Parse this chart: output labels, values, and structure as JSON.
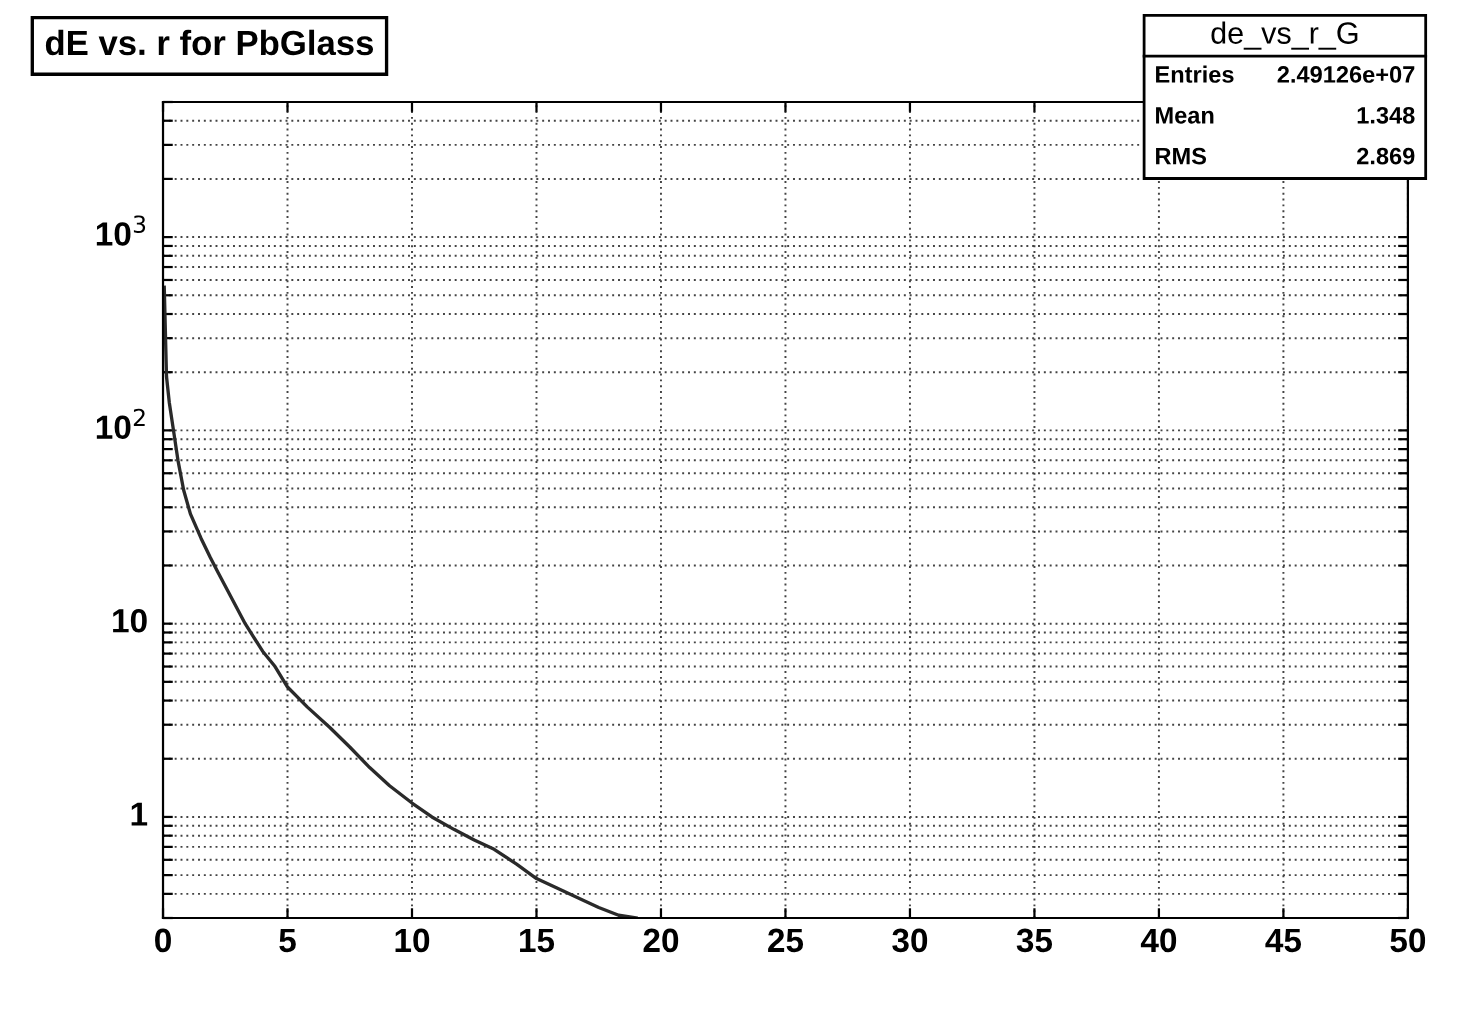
{
  "chart_data": {
    "type": "line",
    "title": "dE vs. r for PbGlass",
    "x": [
      0.05,
      0.14,
      0.25,
      0.42,
      0.6,
      0.83,
      1.1,
      1.53,
      1.9,
      2.2,
      2.7,
      3.3,
      4.0,
      4.5,
      5.0,
      5.8,
      6.7,
      7.5,
      8.3,
      9.1,
      10.0,
      10.8,
      11.7,
      12.5,
      13.3,
      14.2,
      15.0,
      15.8,
      16.7,
      17.5,
      18.3,
      19.0
    ],
    "series": [
      {
        "color": "#2a2a2a",
        "values": [
          550,
          190,
          140,
          100,
          70,
          49,
          37,
          27.6,
          22,
          18.5,
          14,
          10,
          7.2,
          6.0,
          4.7,
          3.7,
          2.9,
          2.3,
          1.8,
          1.45,
          1.18,
          1.0,
          0.86,
          0.76,
          0.68,
          0.57,
          0.48,
          0.43,
          0.38,
          0.34,
          0.31,
          0.3
        ]
      }
    ],
    "xlim": [
      0,
      50
    ],
    "xticks": [
      0,
      5,
      10,
      15,
      20,
      25,
      30,
      35,
      40,
      45,
      50
    ],
    "ylim": [
      0.3,
      5000
    ],
    "log": true,
    "yticks": [
      {
        "value": 0.3,
        "label": null
      },
      {
        "value": 0.4,
        "label": null
      },
      {
        "value": 0.5,
        "label": null
      },
      {
        "value": 0.6,
        "label": null
      },
      {
        "value": 0.7,
        "label": null
      },
      {
        "value": 0.8,
        "label": null
      },
      {
        "value": 0.9,
        "label": null
      },
      1,
      {
        "value": 2,
        "label": null
      },
      {
        "value": 3,
        "label": null
      },
      {
        "value": 4,
        "label": null
      },
      {
        "value": 5,
        "label": null
      },
      {
        "value": 6,
        "label": null
      },
      {
        "value": 7,
        "label": null
      },
      {
        "value": 8,
        "label": null
      },
      {
        "value": 9,
        "label": null
      },
      10,
      {
        "value": 20,
        "label": null
      },
      {
        "value": 30,
        "label": null
      },
      {
        "value": 40,
        "label": null
      },
      {
        "value": 50,
        "label": null
      },
      {
        "value": 60,
        "label": null
      },
      {
        "value": 70,
        "label": null
      },
      {
        "value": 80,
        "label": null
      },
      {
        "value": 90,
        "label": null
      },
      {
        "value": 100,
        "label": "10$^{2}$"
      },
      {
        "value": 200,
        "label": null
      },
      {
        "value": 300,
        "label": null
      },
      {
        "value": 400,
        "label": null
      },
      {
        "value": 500,
        "label": null
      },
      {
        "value": 600,
        "label": null
      },
      {
        "value": 700,
        "label": null
      },
      {
        "value": 800,
        "label": null
      },
      {
        "value": 900,
        "label": null
      },
      {
        "value": 1000,
        "label": "10$^{3}$"
      },
      {
        "value": 2000,
        "label": null
      },
      {
        "value": 3000,
        "label": null
      },
      {
        "value": 4000,
        "label": null
      },
      {
        "value": 5000,
        "label": null
      }
    ],
    "grid": true,
    "annotations": [
      "de_vs_r_G",
      "Entries",
      "2.49126e+07",
      "Mean",
      "1.348",
      "RMS",
      "2.869"
    ]
  }
}
